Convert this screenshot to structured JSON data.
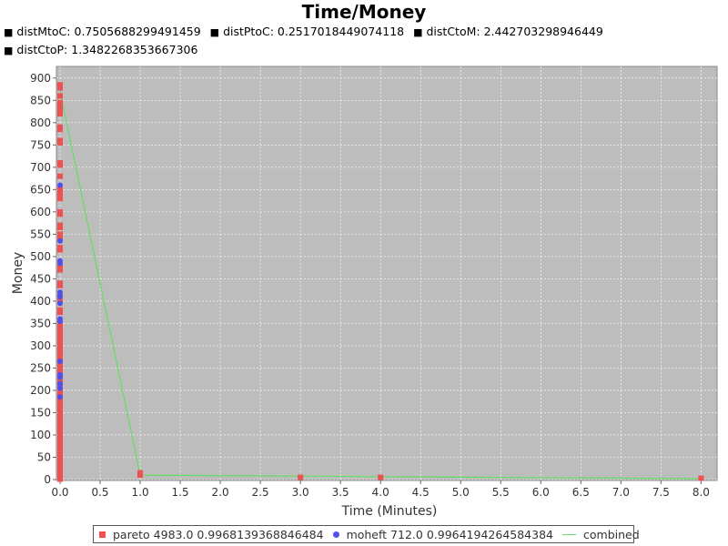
{
  "chart_data": {
    "type": "scatter",
    "title": "Time/Money",
    "subtitle_lines": [
      [
        {
          "label": "distMtoC:",
          "value": "0.7505688299491459"
        },
        {
          "label": "distPtoC:",
          "value": "0.2517018449074118"
        },
        {
          "label": "distCtoM:",
          "value": "2.442703298946449"
        }
      ],
      [
        {
          "label": "distCtoP:",
          "value": "1.3482268353667306"
        }
      ]
    ],
    "xlabel": "Time (Minutes)",
    "ylabel": "Money",
    "xlim": [
      0,
      8.2
    ],
    "ylim": [
      0,
      920
    ],
    "xticks": [
      "0.0",
      "0.5",
      "1.0",
      "1.5",
      "2.0",
      "2.5",
      "3.0",
      "3.5",
      "4.0",
      "4.5",
      "5.0",
      "5.5",
      "6.0",
      "6.5",
      "7.0",
      "7.5",
      "8.0"
    ],
    "yticks": [
      "0",
      "50",
      "100",
      "150",
      "200",
      "250",
      "300",
      "350",
      "400",
      "450",
      "500",
      "550",
      "600",
      "650",
      "700",
      "750",
      "800",
      "850",
      "900"
    ],
    "series": [
      {
        "name": "pareto",
        "legend": "pareto 4983.0 0.9968139368846484",
        "color": "#f05050",
        "marker": "square",
        "x": [
          0,
          0,
          0,
          0,
          0,
          0,
          0,
          0,
          0,
          0,
          0,
          0,
          0,
          0,
          0,
          0,
          0,
          0,
          0,
          0,
          0,
          0,
          0,
          0,
          0,
          0,
          0,
          0,
          0,
          0,
          0,
          0,
          0,
          0,
          0,
          0,
          0,
          0,
          0,
          0,
          0,
          0,
          0,
          0,
          0,
          0,
          0,
          0,
          0,
          0,
          0,
          0,
          0,
          0,
          0,
          0,
          0,
          0,
          0,
          0,
          0,
          0,
          0,
          0,
          0,
          0,
          0,
          0,
          0,
          0,
          0,
          0,
          0,
          0,
          1,
          1,
          3,
          4,
          8
        ],
        "y": [
          885,
          878,
          860,
          845,
          835,
          828,
          820,
          790,
          785,
          760,
          755,
          710,
          705,
          680,
          650,
          640,
          630,
          600,
          595,
          570,
          565,
          550,
          540,
          520,
          515,
          480,
          470,
          440,
          435,
          410,
          400,
          380,
          375,
          350,
          340,
          330,
          320,
          310,
          300,
          290,
          280,
          270,
          260,
          255,
          245,
          240,
          230,
          220,
          210,
          200,
          190,
          180,
          170,
          160,
          150,
          140,
          130,
          120,
          110,
          100,
          90,
          80,
          70,
          60,
          50,
          40,
          30,
          20,
          15,
          10,
          8,
          5,
          3,
          1,
          15,
          10,
          5,
          5,
          3
        ]
      },
      {
        "name": "moheft",
        "legend": "moheft 712.0 0.9964194264584384",
        "color": "#5050f0",
        "marker": "circle",
        "x": [
          0,
          0,
          0,
          0,
          0,
          0,
          0,
          0,
          0,
          0,
          0,
          0,
          0,
          0,
          0
        ],
        "y": [
          660,
          535,
          490,
          485,
          420,
          410,
          395,
          360,
          355,
          265,
          235,
          230,
          215,
          205,
          185
        ]
      },
      {
        "name": "combined",
        "legend": "combined",
        "color": "#66dd66",
        "marker": "line",
        "x": [
          0,
          1.0,
          8.0
        ],
        "y": [
          870,
          10,
          2
        ]
      }
    ]
  }
}
